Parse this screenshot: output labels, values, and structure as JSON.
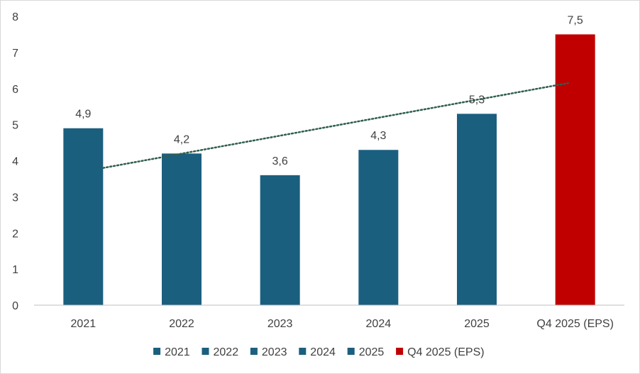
{
  "colors": {
    "bar": "#1b5f7f",
    "highlight": "#c00000",
    "trend": "#2e5e4e",
    "axis": "#bfbfbf",
    "text": "#404040"
  },
  "chart_data": {
    "type": "bar",
    "categories": [
      "2021",
      "2022",
      "2023",
      "2024",
      "2025",
      "Q4 2025 (EPS)"
    ],
    "values": [
      4.9,
      4.2,
      3.6,
      4.3,
      5.3,
      7.5
    ],
    "data_labels": [
      "4,9",
      "4,2",
      "3,6",
      "4,3",
      "5,3",
      "7,5"
    ],
    "bar_colors": [
      "#1b5f7f",
      "#1b5f7f",
      "#1b5f7f",
      "#1b5f7f",
      "#1b5f7f",
      "#c00000"
    ],
    "yticks": [
      "0",
      "1",
      "2",
      "3",
      "4",
      "5",
      "6",
      "7",
      "8"
    ],
    "ylim": [
      0,
      8
    ],
    "grid": false,
    "legend": {
      "position": "bottom",
      "entries": [
        "2021",
        "2022",
        "2023",
        "2024",
        "2025",
        "Q4 2025 (EPS)"
      ]
    },
    "trendline": {
      "type": "linear",
      "style": "dotted",
      "from": 3.8,
      "to": 6.15
    }
  }
}
